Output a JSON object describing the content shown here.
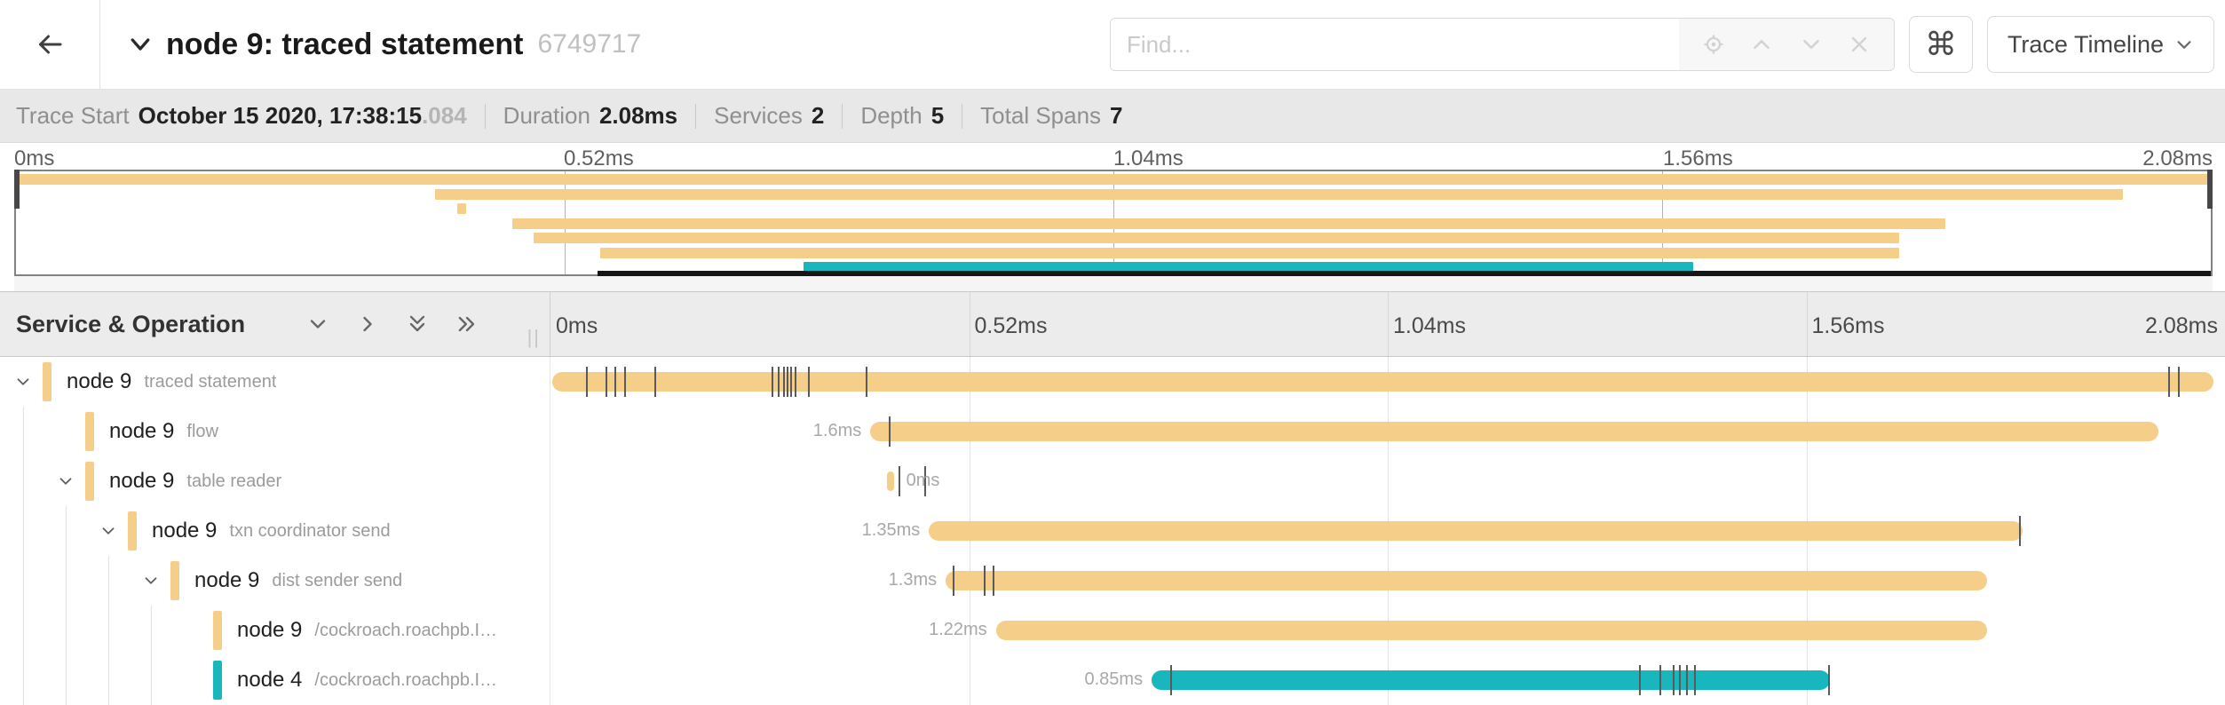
{
  "titlebar": {
    "title": "node 9: traced statement",
    "trace_id": "6749717",
    "find_placeholder": "Find...",
    "shortcut_key": "⌘",
    "view_selector": "Trace Timeline"
  },
  "summary": {
    "items": [
      {
        "label": "Trace Start",
        "value": "October 15 2020, 17:38:15",
        "muted_suffix": ".084"
      },
      {
        "label": "Duration",
        "value": "2.08ms",
        "muted_suffix": ""
      },
      {
        "label": "Services",
        "value": "2",
        "muted_suffix": ""
      },
      {
        "label": "Depth",
        "value": "5",
        "muted_suffix": ""
      },
      {
        "label": "Total Spans",
        "value": "7",
        "muted_suffix": ""
      }
    ]
  },
  "timeline": {
    "header_label": "Service & Operation",
    "axis_ticks": [
      {
        "label": "0ms",
        "pct": 0
      },
      {
        "label": "0.52ms",
        "pct": 25
      },
      {
        "label": "1.04ms",
        "pct": 50
      },
      {
        "label": "1.56ms",
        "pct": 75
      },
      {
        "label": "2.08ms",
        "pct": 100
      }
    ],
    "total_duration": "2.08ms"
  },
  "colors": {
    "tan": "#F5CE8A",
    "teal": "#18B7BE"
  },
  "minimap": {
    "viewport_bar": {
      "start_pct": 26.5,
      "end_pct": 100
    }
  },
  "spans": [
    {
      "service": "node 9",
      "operation": "traced statement",
      "depth": 0,
      "expandable": true,
      "color": "tan",
      "start_pct": 0.1,
      "end_pct": 99.3,
      "duration_label": "",
      "label_side": "none",
      "ticks_pct": [
        2.1,
        3.3,
        3.8,
        4.4,
        6.2,
        13.2,
        13.6,
        13.9,
        14.1,
        14.3,
        14.6,
        15.4,
        18.8,
        96.6,
        97.2
      ]
    },
    {
      "service": "node 9",
      "operation": "flow",
      "depth": 1,
      "expandable": false,
      "color": "tan",
      "start_pct": 19.1,
      "end_pct": 96.0,
      "duration_label": "1.6ms",
      "label_side": "left",
      "ticks_pct": [
        20.2
      ]
    },
    {
      "service": "node 9",
      "operation": "table reader",
      "depth": 1,
      "expandable": true,
      "color": "tan",
      "start_pct": 20.1,
      "end_pct": 20.5,
      "duration_label": "0ms",
      "label_side": "right",
      "ticks_pct": [
        20.8,
        22.3
      ]
    },
    {
      "service": "node 9",
      "operation": "txn coordinator send",
      "depth": 2,
      "expandable": true,
      "color": "tan",
      "start_pct": 22.6,
      "end_pct": 87.9,
      "duration_label": "1.35ms",
      "label_side": "left",
      "ticks_pct": [
        87.7
      ]
    },
    {
      "service": "node 9",
      "operation": "dist sender send",
      "depth": 3,
      "expandable": true,
      "color": "tan",
      "start_pct": 23.6,
      "end_pct": 85.8,
      "duration_label": "1.3ms",
      "label_side": "left",
      "ticks_pct": [
        24.0,
        25.9,
        26.4
      ]
    },
    {
      "service": "node 9",
      "operation": "/cockroach.roachpb.I…",
      "depth": 4,
      "expandable": false,
      "color": "tan",
      "start_pct": 26.6,
      "end_pct": 85.8,
      "duration_label": "1.22ms",
      "label_side": "left",
      "ticks_pct": []
    },
    {
      "service": "node 4",
      "operation": "/cockroach.roachpb.I…",
      "depth": 4,
      "expandable": false,
      "color": "teal",
      "start_pct": 35.9,
      "end_pct": 76.4,
      "duration_label": "0.85ms",
      "label_side": "left",
      "ticks_pct": [
        37.0,
        65.0,
        66.2,
        67.0,
        67.4,
        67.8,
        68.3,
        76.3
      ]
    }
  ]
}
